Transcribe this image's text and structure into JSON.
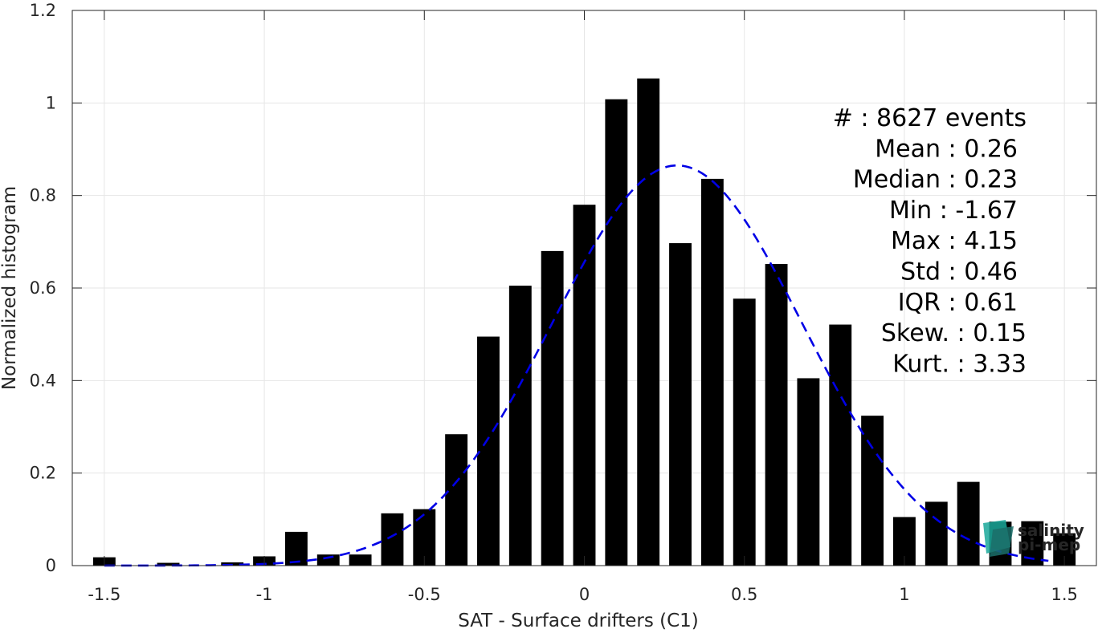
{
  "chart_data": {
    "type": "bar",
    "xlabel": "SAT - Surface drifters (C1)",
    "ylabel": "Normalized histogram",
    "xlim": [
      -1.6,
      1.6
    ],
    "ylim": [
      0,
      1.2
    ],
    "xticks": [
      -1.5,
      -1,
      -0.5,
      0,
      0.5,
      1,
      1.5
    ],
    "xtick_labels": [
      "-1.5",
      "-1",
      "-0.5",
      "0",
      "0.5",
      "1",
      "1.5"
    ],
    "yticks": [
      0,
      0.2,
      0.4,
      0.6,
      0.8,
      1,
      1.2
    ],
    "ytick_labels": [
      "0",
      "0.2",
      "0.4",
      "0.6",
      "0.8",
      "1",
      "1.2"
    ],
    "grid": true,
    "bar_width": 0.07,
    "bar_color": "#000000",
    "bars": {
      "x": [
        -1.5,
        -1.3,
        -1.1,
        -1.0,
        -0.9,
        -0.8,
        -0.7,
        -0.6,
        -0.5,
        -0.4,
        -0.3,
        -0.2,
        -0.1,
        0.0,
        0.1,
        0.2,
        0.3,
        0.4,
        0.5,
        0.6,
        0.7,
        0.8,
        0.9,
        1.0,
        1.1,
        1.2,
        1.3,
        1.4,
        1.5
      ],
      "values": [
        0.018,
        0.006,
        0.007,
        0.02,
        0.073,
        0.024,
        0.024,
        0.113,
        0.122,
        0.284,
        0.495,
        0.605,
        0.68,
        0.78,
        1.008,
        1.053,
        0.697,
        0.836,
        0.577,
        0.652,
        0.405,
        0.521,
        0.324,
        0.105,
        0.138,
        0.181,
        0.095,
        0.096,
        0.07
      ]
    },
    "fit": {
      "type": "gaussian",
      "style": "dashed",
      "color": "#0000e6",
      "mean": 0.29,
      "std": 0.39,
      "peak": 0.865,
      "range": [
        -1.5,
        1.45
      ]
    },
    "stats": [
      {
        "label": "#  : 8627 events"
      },
      {
        "label": "Mean : 0.26"
      },
      {
        "label": "Median : 0.23"
      },
      {
        "label": "Min : -1.67"
      },
      {
        "label": "Max : 4.15"
      },
      {
        "label": "Std : 0.46"
      },
      {
        "label": "IQR : 0.61"
      },
      {
        "label": "Skew. : 0.15"
      },
      {
        "label": "Kurt. : 3.33"
      }
    ]
  },
  "logo": {
    "line1": "salinity",
    "line2": "pi-mep",
    "color_teal": "#1aa89a",
    "color_dark": "#1b6f6a"
  }
}
